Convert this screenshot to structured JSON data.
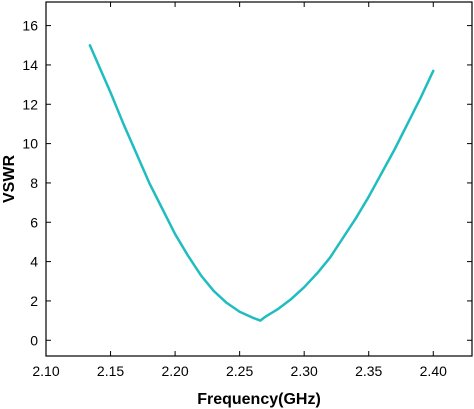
{
  "chart_data": {
    "type": "line",
    "title": "",
    "xlabel": "Frequency(GHz)",
    "ylabel": "VSWR",
    "xlim": [
      2.1,
      2.43
    ],
    "ylim": [
      -0.8,
      17.2
    ],
    "x_ticks": [
      "2.10",
      "2.15",
      "2.20",
      "2.25",
      "2.30",
      "2.35",
      "2.40"
    ],
    "y_ticks": [
      "0",
      "2",
      "4",
      "6",
      "8",
      "10",
      "12",
      "14",
      "16"
    ],
    "grid": false,
    "legend": "none",
    "series": [
      {
        "color": "#1fbdbf",
        "x": [
          2.134,
          2.14,
          2.15,
          2.16,
          2.17,
          2.18,
          2.19,
          2.2,
          2.21,
          2.22,
          2.23,
          2.24,
          2.25,
          2.26,
          2.266,
          2.27,
          2.28,
          2.29,
          2.3,
          2.31,
          2.32,
          2.33,
          2.34,
          2.35,
          2.36,
          2.37,
          2.38,
          2.39,
          2.4
        ],
        "y": [
          15.0,
          14.1,
          12.6,
          11.0,
          9.5,
          8.0,
          6.7,
          5.4,
          4.3,
          3.3,
          2.5,
          1.9,
          1.45,
          1.15,
          1.0,
          1.2,
          1.6,
          2.1,
          2.7,
          3.4,
          4.2,
          5.2,
          6.2,
          7.3,
          8.5,
          9.7,
          11.0,
          12.3,
          13.7
        ]
      }
    ]
  }
}
